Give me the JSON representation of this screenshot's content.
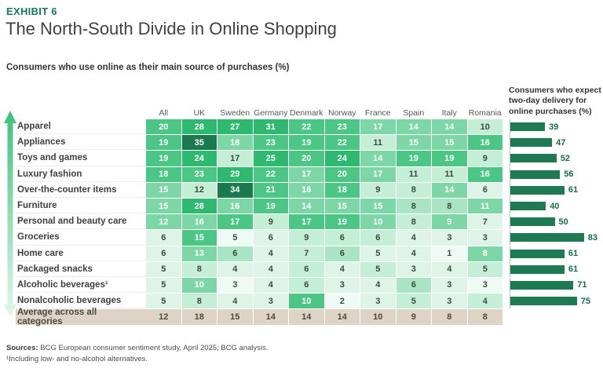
{
  "exhibit_label": "EXHIBIT 6",
  "title": "The North-South Divide in Online Shopping",
  "subtitle": "Consumers who use online as their main source of purchases (%)",
  "bars_title_lines": [
    "Consumers who expect",
    "two-day delivery for",
    "online purchases (%)"
  ],
  "footer": {
    "sources_label": "Sources:",
    "sources_text": " BCG European consumer sentiment study, April 2025; BCG analysis.",
    "footnote": "¹Including low- and no-alcohol alternatives."
  },
  "colors": {
    "accent_green": "#177B57",
    "bar_fill": "#1E7A52",
    "bar_label": "#176A4B",
    "avg_bg": "#DDD4C6",
    "cell_text_dark": "#3D4A44",
    "cell_text_light": "#FFFFFF",
    "arrow_top": "#3CC17B",
    "arrow_bottom": "#E4F7ED",
    "heat_palette": [
      "#F0FAF4",
      "#DDF4E6",
      "#C5EED6",
      "#A9E5C4",
      "#7CD6A6",
      "#4CC685",
      "#2EB870",
      "#1B7950"
    ]
  },
  "chart_data": {
    "type": "heatmap",
    "title": "Consumers who use online as their main source of purchases (%)",
    "columns": [
      "All",
      "UK",
      "Sweden",
      "Germany",
      "Denmark",
      "Norway",
      "France",
      "Spain",
      "Italy",
      "Romania"
    ],
    "rows": [
      {
        "label": "Apparel",
        "values": [
          20,
          28,
          27,
          31,
          22,
          23,
          17,
          14,
          14,
          10
        ],
        "shades": [
          5,
          6,
          6,
          6,
          5,
          5,
          4,
          4,
          4,
          2
        ],
        "bar": 39
      },
      {
        "label": "Appliances",
        "values": [
          19,
          35,
          18,
          23,
          19,
          22,
          11,
          15,
          15,
          16
        ],
        "shades": [
          5,
          7,
          4,
          5,
          5,
          5,
          2,
          4,
          4,
          5
        ],
        "bar": 47
      },
      {
        "label": "Toys and games",
        "values": [
          19,
          24,
          17,
          25,
          20,
          24,
          14,
          19,
          19,
          9
        ],
        "shades": [
          5,
          6,
          2,
          6,
          5,
          6,
          4,
          5,
          5,
          2
        ],
        "bar": 52
      },
      {
        "label": "Luxury fashion",
        "values": [
          18,
          23,
          29,
          22,
          17,
          20,
          17,
          11,
          11,
          16
        ],
        "shades": [
          5,
          5,
          6,
          5,
          4,
          5,
          4,
          2,
          2,
          5
        ],
        "bar": 56
      },
      {
        "label": "Over-the-counter items",
        "values": [
          15,
          12,
          34,
          21,
          16,
          18,
          9,
          8,
          14,
          6
        ],
        "shades": [
          4,
          2,
          7,
          5,
          4,
          5,
          2,
          2,
          4,
          1
        ],
        "bar": 61
      },
      {
        "label": "Furniture",
        "values": [
          15,
          28,
          16,
          19,
          14,
          15,
          15,
          8,
          8,
          11
        ],
        "shades": [
          4,
          6,
          4,
          5,
          4,
          4,
          4,
          3,
          3,
          4
        ],
        "bar": 40
      },
      {
        "label": "Personal and beauty care",
        "values": [
          12,
          16,
          17,
          9,
          17,
          19,
          10,
          8,
          9,
          7
        ],
        "shades": [
          4,
          4,
          5,
          2,
          5,
          5,
          4,
          2,
          4,
          1
        ],
        "bar": 50
      },
      {
        "label": "Groceries",
        "values": [
          6,
          15,
          5,
          6,
          9,
          6,
          6,
          4,
          3,
          3
        ],
        "shades": [
          1,
          5,
          0,
          1,
          2,
          2,
          2,
          1,
          1,
          1
        ],
        "bar": 83
      },
      {
        "label": "Home care",
        "values": [
          6,
          13,
          6,
          4,
          7,
          6,
          5,
          4,
          1,
          8
        ],
        "shades": [
          1,
          4,
          3,
          1,
          2,
          3,
          1,
          1,
          0,
          4
        ],
        "bar": 61
      },
      {
        "label": "Packaged snacks",
        "values": [
          5,
          8,
          4,
          4,
          6,
          4,
          5,
          3,
          4,
          5
        ],
        "shades": [
          1,
          2,
          1,
          1,
          2,
          1,
          2,
          1,
          1,
          2
        ],
        "bar": 61
      },
      {
        "label": "Alcoholic beverages¹",
        "values": [
          5,
          10,
          3,
          4,
          6,
          3,
          4,
          6,
          3,
          3
        ],
        "shades": [
          1,
          4,
          0,
          1,
          2,
          1,
          1,
          3,
          1,
          0
        ],
        "bar": 71
      },
      {
        "label": "Nonalcoholic beverages",
        "values": [
          5,
          8,
          4,
          3,
          10,
          2,
          3,
          5,
          3,
          4
        ],
        "shades": [
          1,
          2,
          1,
          1,
          5,
          0,
          1,
          2,
          1,
          2
        ],
        "bar": 75
      }
    ],
    "average_row": {
      "label": "Average across all categories",
      "values": [
        12,
        18,
        15,
        14,
        14,
        14,
        10,
        9,
        8,
        8
      ]
    },
    "side_bars": {
      "title": "Consumers who expect two-day delivery for online purchases (%)",
      "type": "bar",
      "values": [
        39,
        47,
        52,
        56,
        61,
        40,
        50,
        83,
        61,
        61,
        71,
        75
      ],
      "xlim": [
        0,
        100
      ]
    }
  }
}
